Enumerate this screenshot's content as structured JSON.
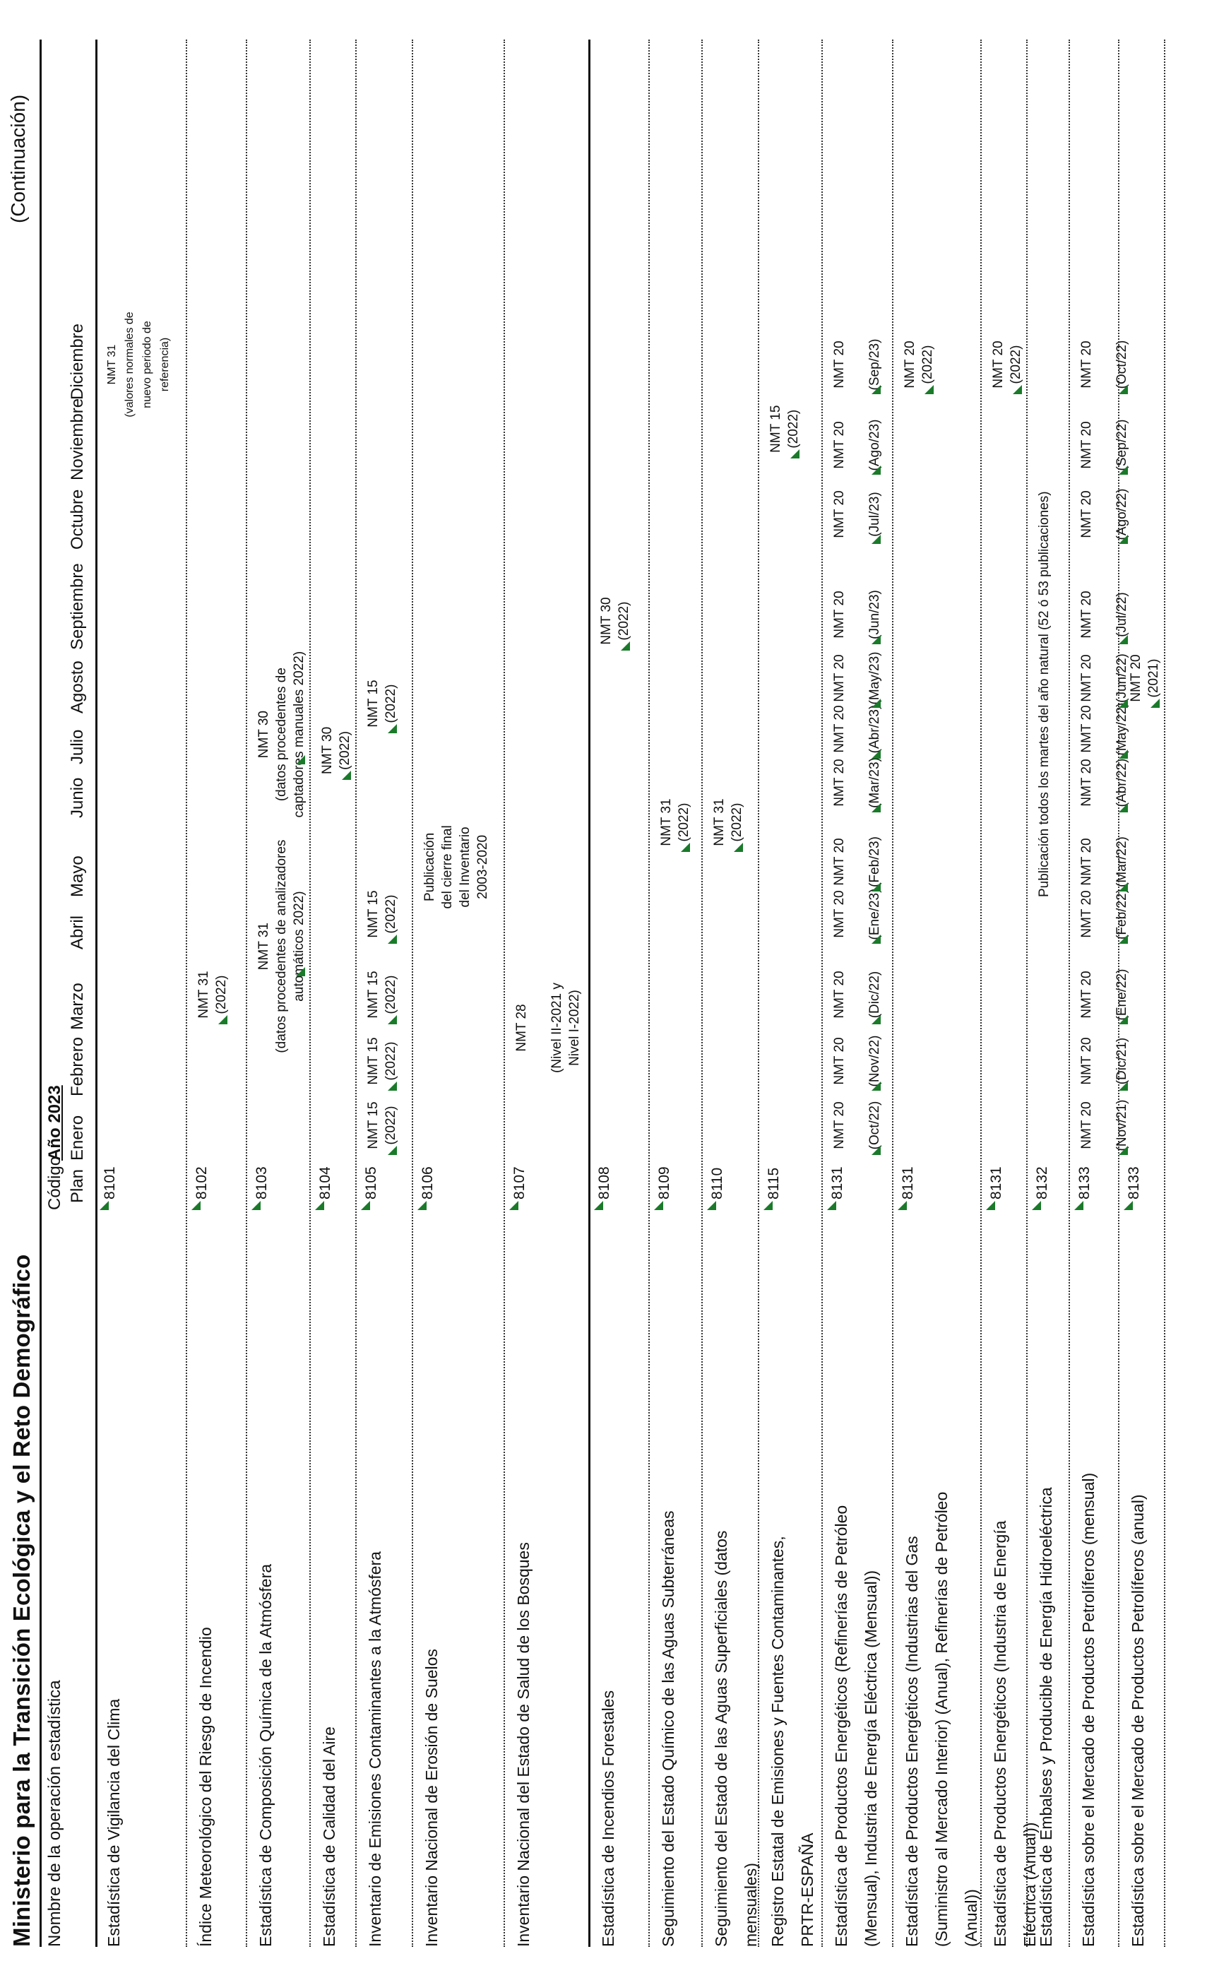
{
  "header": {
    "title": "Ministerio para la Transición Ecológica y el Reto Demográfico",
    "continuation": "(Continuación)",
    "col_name": "Nombre de la operación estadística",
    "col_code": "Código",
    "col_plan": "Plan",
    "year": "Año 2023",
    "months": [
      "Enero",
      "Febrero",
      "Marzo",
      "Abril",
      "Mayo",
      "Junio",
      "Julio",
      "Agosto",
      "Septiembre",
      "Octubre",
      "Noviembre",
      "Diciembre"
    ]
  },
  "rows": [
    {
      "name": [
        "Estadística de Vigilancia del Clima"
      ],
      "code": "8101",
      "cells": [
        {
          "col": 11,
          "lines": [
            "NMT 31",
            "(valores normales de",
            "nuevo periodo de",
            "referencia)"
          ],
          "small": true
        }
      ]
    },
    {
      "name": [
        "Índice Meteorológico del Riesgo de Incendio"
      ],
      "code": "8102",
      "cells": [
        {
          "col": 2,
          "lines": [
            "NMT 31",
            "(2022)"
          ]
        }
      ]
    },
    {
      "name": [
        "Estadística de Composición Química de la Atmósfera"
      ],
      "code": "8103",
      "cells": [
        {
          "col": 2.6,
          "lines": [
            "NMT 31",
            "(datos procedentes de analizadores",
            "automáticos 2022)"
          ]
        },
        {
          "col": 5.9,
          "lines": [
            "NMT 30",
            "(datos procedentes de",
            "captadores manuales 2022)"
          ]
        }
      ]
    },
    {
      "name": [
        "Estadística de Calidad del Aire"
      ],
      "code": "8104",
      "cells": [
        {
          "col": 5.6,
          "lines": [
            "NMT 30",
            "(2022)"
          ]
        }
      ]
    },
    {
      "name": [
        "Inventario de Emisiones Contaminantes a la Atmósfera"
      ],
      "code": "8105",
      "cells": [
        {
          "col": 0,
          "lines": [
            "NMT 15",
            "(2022)"
          ]
        },
        {
          "col": 1,
          "lines": [
            "NMT 15",
            "(2022)"
          ]
        },
        {
          "col": 2,
          "lines": [
            "NMT 15",
            "(2022)"
          ]
        },
        {
          "col": 3,
          "lines": [
            "NMT 15",
            "(2022)"
          ]
        },
        {
          "col": 6.5,
          "lines": [
            "NMT 15",
            "(2022)"
          ]
        }
      ]
    },
    {
      "name": [
        "Inventario Nacional de Erosión de Suelos"
      ],
      "code": "8106",
      "cells": [
        {
          "col": 3.9,
          "lines": [
            "Publicación",
            "del cierre final",
            "del Inventario",
            "2003-2020"
          ]
        }
      ]
    },
    {
      "name": [
        "Inventario Nacional del Estado de Salud de los Bosques"
      ],
      "code": "8107",
      "cells": [
        {
          "col": 1.5,
          "lines": [
            "NMT 28",
            "",
            "(Nivel II-2021 y",
            "Nivel I-2022)"
          ]
        }
      ]
    },
    {
      "name": [
        "Estadística de Incendios Forestales"
      ],
      "code": "8108",
      "cells": [
        {
          "col": 7.9,
          "lines": [
            "NMT 30",
            "(2022)"
          ]
        }
      ]
    },
    {
      "name": [
        "Seguimiento del Estado Químico de las Aguas Subterráneas"
      ],
      "code": "8109",
      "cells": [
        {
          "col": 4.5,
          "lines": [
            "NMT 31",
            "(2022)"
          ]
        }
      ]
    },
    {
      "name": [
        "Seguimiento del Estado de las Aguas Superficiales (datos",
        "mensuales)"
      ],
      "code": "8110",
      "cells": [
        {
          "col": 4.5,
          "lines": [
            "NMT 31",
            "(2022)"
          ]
        }
      ]
    },
    {
      "name": [
        "Registro Estatal de Emisiones y Fuentes Contaminantes,",
        "PRTR-ESPAÑA"
      ],
      "code": "8115",
      "cells": [
        {
          "col": 10.2,
          "lines": [
            "NMT 15",
            "(2022)"
          ]
        }
      ]
    },
    {
      "name": [
        "Estadística de Productos Energéticos (Refinerías de Petróleo",
        "(Mensual), Industria de Energía Eléctrica (Mensual))"
      ],
      "code": "8131",
      "cells": [
        {
          "col": 0,
          "lines": [
            "NMT 20",
            "",
            "(Oct/22)"
          ]
        },
        {
          "col": 1,
          "lines": [
            "NMT 20",
            "",
            "(Nov/22)"
          ]
        },
        {
          "col": 2,
          "lines": [
            "NMT 20",
            "",
            "(Dic/22)"
          ]
        },
        {
          "col": 3,
          "lines": [
            "NMT 20",
            "",
            "(Ene/23)"
          ]
        },
        {
          "col": 4,
          "lines": [
            "NMT 20",
            "",
            "(Feb/23)"
          ]
        },
        {
          "col": 5,
          "lines": [
            "NMT 20",
            "",
            "(Mar/23)"
          ]
        },
        {
          "col": 6,
          "lines": [
            "NMT 20",
            "",
            "(Abr/23)"
          ]
        },
        {
          "col": 7,
          "lines": [
            "NMT 20",
            "",
            "(May/23)"
          ]
        },
        {
          "col": 8,
          "lines": [
            "NMT 20",
            "",
            "(Jun/23)"
          ]
        },
        {
          "col": 9,
          "lines": [
            "NMT 20",
            "",
            "(Jul/23)"
          ]
        },
        {
          "col": 10,
          "lines": [
            "NMT 20",
            "",
            "(Ago/23)"
          ]
        },
        {
          "col": 11,
          "lines": [
            "NMT 20",
            "",
            "(Sep/23)"
          ]
        }
      ]
    },
    {
      "name": [
        "Estadística de Productos Energéticos (Industrias del Gas",
        "(Suministro al Mercado Interior) (Anual), Refinerías de Petróleo",
        "(Anual))"
      ],
      "code": "8131",
      "cells": [
        {
          "col": 11,
          "lines": [
            "NMT 20",
            "(2022)"
          ]
        }
      ]
    },
    {
      "name": [
        "Estadística de Productos Energéticos (Industria de Energía",
        "Eléctrica (Anual))"
      ],
      "code": "8131",
      "cells": [
        {
          "col": 11,
          "lines": [
            "NMT 20",
            "(2022)"
          ]
        }
      ]
    },
    {
      "name": [
        "Estadística de Embalses y Producible de Energía Hidroeléctrica"
      ],
      "code": "8132",
      "cells": [
        {
          "col": 5.5,
          "lines": [
            "Publicación todos los martes del año natural (52 ó 53 publicaciones)"
          ]
        }
      ]
    },
    {
      "name": [
        "Estadística sobre el Mercado de Productos Petrolíferos (mensual)"
      ],
      "code": "8133",
      "cells": [
        {
          "col": 0,
          "lines": [
            "NMT 20",
            "",
            "(Nov/21)"
          ]
        },
        {
          "col": 1,
          "lines": [
            "NMT 20",
            "",
            "(Dic/21)"
          ]
        },
        {
          "col": 2,
          "lines": [
            "NMT 20",
            "",
            "(Ene/22)"
          ]
        },
        {
          "col": 3,
          "lines": [
            "NMT 20",
            "",
            "(Feb/22)"
          ]
        },
        {
          "col": 4,
          "lines": [
            "NMT 20",
            "",
            "(Mar/22)"
          ]
        },
        {
          "col": 5,
          "lines": [
            "NMT 20",
            "",
            "(Abr/22)"
          ]
        },
        {
          "col": 6,
          "lines": [
            "NMT 20",
            "",
            "(May/22)"
          ]
        },
        {
          "col": 7,
          "lines": [
            "NMT 20",
            "",
            "(Jun/22)"
          ]
        },
        {
          "col": 8,
          "lines": [
            "NMT 20",
            "",
            "(Jul/22)"
          ]
        },
        {
          "col": 9,
          "lines": [
            "NMT 20",
            "",
            "(Ago/22)"
          ]
        },
        {
          "col": 10,
          "lines": [
            "NMT 20",
            "",
            "(Sep/22)"
          ]
        },
        {
          "col": 11,
          "lines": [
            "NMT 20",
            "",
            "(Oct/22)"
          ]
        }
      ]
    },
    {
      "name": [
        "Estadística sobre el Mercado de Productos Petrolíferos (anual)"
      ],
      "code": "8133",
      "cells": [
        {
          "col": 7,
          "lines": [
            "NMT 20",
            "(2021)"
          ]
        }
      ]
    }
  ]
}
